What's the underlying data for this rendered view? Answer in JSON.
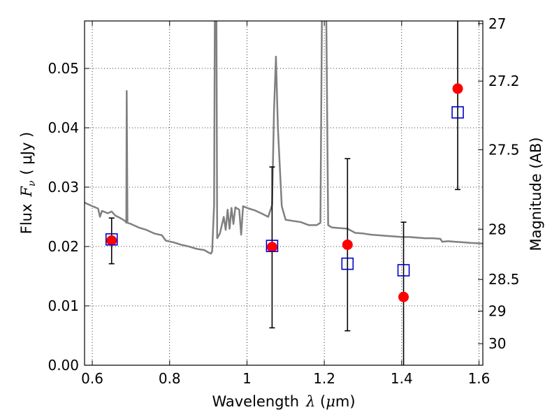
{
  "chart_data": {
    "type": "scatter",
    "title": "",
    "xlabel": {
      "prefix": "Wavelength",
      "symbol": "λ",
      "unit_open": " (",
      "unit_mu": "μ",
      "unit_rest": "m)"
    },
    "ylabel": {
      "prefix": "Flux",
      "symbol": "F",
      "subscript": "ν",
      "unit": "(  μJy )"
    },
    "y2label": "Magnitude (AB)",
    "xlim": [
      0.58,
      1.61
    ],
    "ylim": [
      0.0,
      0.058
    ],
    "grid": true,
    "x_ticks": [
      {
        "value": 0.6,
        "label": "0.6"
      },
      {
        "value": 0.8,
        "label": "0.8"
      },
      {
        "value": 1.0,
        "label": "1"
      },
      {
        "value": 1.2,
        "label": "1.2"
      },
      {
        "value": 1.4,
        "label": "1.4"
      },
      {
        "value": 1.6,
        "label": "1.6"
      }
    ],
    "y_ticks": [
      {
        "value": 0.0,
        "label": "0.00"
      },
      {
        "value": 0.01,
        "label": "0.01"
      },
      {
        "value": 0.02,
        "label": "0.02"
      },
      {
        "value": 0.03,
        "label": "0.03"
      },
      {
        "value": 0.04,
        "label": "0.04"
      },
      {
        "value": 0.05,
        "label": "0.05"
      }
    ],
    "y2_ticks": [
      {
        "value": 27,
        "label": "27"
      },
      {
        "value": 27.2,
        "label": "27.2"
      },
      {
        "value": 27.5,
        "label": "27.5"
      },
      {
        "value": 28,
        "label": "28"
      },
      {
        "value": 28.5,
        "label": "28.5"
      },
      {
        "value": 29,
        "label": "29"
      },
      {
        "value": 30,
        "label": "30"
      }
    ],
    "observed": {
      "color": "#ff0000",
      "points": [
        {
          "x": 0.65,
          "y": 0.021,
          "yerr_low": 0.0171,
          "yerr_high": 0.0248
        },
        {
          "x": 1.065,
          "y": 0.0199,
          "yerr_low": 0.0063,
          "yerr_high": 0.0334
        },
        {
          "x": 1.26,
          "y": 0.0203,
          "yerr_low": 0.0058,
          "yerr_high": 0.0348
        },
        {
          "x": 1.405,
          "y": 0.0115,
          "yerr_low": -0.002,
          "yerr_high": 0.0241
        },
        {
          "x": 1.545,
          "y": 0.0466,
          "yerr_low": 0.0296,
          "yerr_high": 0.06
        }
      ]
    },
    "model_photometry": {
      "color": "#0000cc",
      "marker": "open-square",
      "points": [
        {
          "x": 0.65,
          "y": 0.0212
        },
        {
          "x": 1.065,
          "y": 0.0201
        },
        {
          "x": 1.26,
          "y": 0.0171
        },
        {
          "x": 1.405,
          "y": 0.016
        },
        {
          "x": 1.545,
          "y": 0.0426
        }
      ]
    },
    "model_spectrum": {
      "color": "#808080",
      "points": [
        [
          0.58,
          0.0274
        ],
        [
          0.6,
          0.0268
        ],
        [
          0.615,
          0.0264
        ],
        [
          0.62,
          0.025
        ],
        [
          0.625,
          0.026
        ],
        [
          0.64,
          0.0256
        ],
        [
          0.65,
          0.0259
        ],
        [
          0.66,
          0.0252
        ],
        [
          0.675,
          0.0247
        ],
        [
          0.685,
          0.0243
        ],
        [
          0.688,
          0.024
        ],
        [
          0.689,
          0.0462
        ],
        [
          0.691,
          0.024
        ],
        [
          0.7,
          0.0238
        ],
        [
          0.72,
          0.0232
        ],
        [
          0.74,
          0.0228
        ],
        [
          0.76,
          0.0222
        ],
        [
          0.78,
          0.0219
        ],
        [
          0.79,
          0.021
        ],
        [
          0.81,
          0.0207
        ],
        [
          0.83,
          0.0203
        ],
        [
          0.85,
          0.02
        ],
        [
          0.87,
          0.0196
        ],
        [
          0.89,
          0.0194
        ],
        [
          0.9,
          0.019
        ],
        [
          0.907,
          0.0188
        ],
        [
          0.91,
          0.0192
        ],
        [
          0.915,
          0.027
        ],
        [
          0.917,
          0.06
        ],
        [
          0.921,
          0.06
        ],
        [
          0.923,
          0.0214
        ],
        [
          0.93,
          0.0222
        ],
        [
          0.94,
          0.025
        ],
        [
          0.945,
          0.0228
        ],
        [
          0.95,
          0.0262
        ],
        [
          0.955,
          0.023
        ],
        [
          0.96,
          0.0265
        ],
        [
          0.965,
          0.0238
        ],
        [
          0.97,
          0.0266
        ],
        [
          0.98,
          0.0262
        ],
        [
          0.985,
          0.022
        ],
        [
          0.99,
          0.0268
        ],
        [
          1.0,
          0.0265
        ],
        [
          1.02,
          0.0261
        ],
        [
          1.04,
          0.0255
        ],
        [
          1.055,
          0.025
        ],
        [
          1.065,
          0.027
        ],
        [
          1.07,
          0.043
        ],
        [
          1.075,
          0.052
        ],
        [
          1.08,
          0.04
        ],
        [
          1.09,
          0.0268
        ],
        [
          1.1,
          0.0245
        ],
        [
          1.12,
          0.0243
        ],
        [
          1.14,
          0.0241
        ],
        [
          1.16,
          0.0236
        ],
        [
          1.18,
          0.0236
        ],
        [
          1.19,
          0.024
        ],
        [
          1.194,
          0.06
        ],
        [
          1.205,
          0.06
        ],
        [
          1.21,
          0.0236
        ],
        [
          1.22,
          0.0232
        ],
        [
          1.24,
          0.0231
        ],
        [
          1.26,
          0.023
        ],
        [
          1.28,
          0.0223
        ],
        [
          1.3,
          0.0222
        ],
        [
          1.32,
          0.022
        ],
        [
          1.34,
          0.0219
        ],
        [
          1.36,
          0.0218
        ],
        [
          1.38,
          0.0217
        ],
        [
          1.4,
          0.0216
        ],
        [
          1.42,
          0.0216
        ],
        [
          1.44,
          0.0215
        ],
        [
          1.46,
          0.0214
        ],
        [
          1.48,
          0.0214
        ],
        [
          1.5,
          0.0213
        ],
        [
          1.505,
          0.0208
        ],
        [
          1.52,
          0.0209
        ],
        [
          1.54,
          0.0208
        ],
        [
          1.56,
          0.0207
        ],
        [
          1.58,
          0.0206
        ],
        [
          1.61,
          0.0205
        ]
      ]
    }
  }
}
